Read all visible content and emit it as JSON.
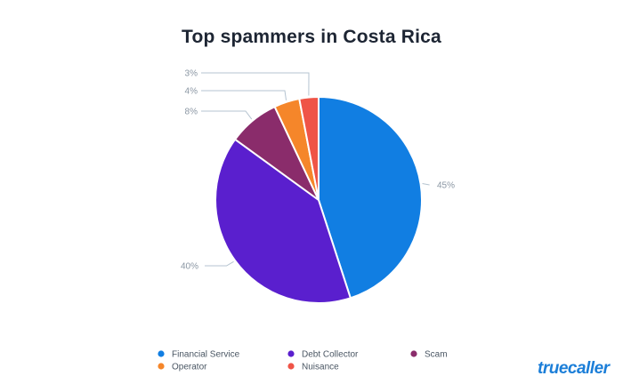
{
  "chart_data": {
    "type": "pie",
    "title": "Top spammers in Costa Rica",
    "slices": [
      {
        "name": "Financial Service",
        "value": 45,
        "label": "45%",
        "color": "#117ee2"
      },
      {
        "name": "Debt Collector",
        "value": 40,
        "label": "40%",
        "color": "#5a1fce"
      },
      {
        "name": "Scam",
        "value": 8,
        "label": "8%",
        "color": "#8a2c6b"
      },
      {
        "name": "Operator",
        "value": 4,
        "label": "4%",
        "color": "#f5862a"
      },
      {
        "name": "Nuisance",
        "value": 3,
        "label": "3%",
        "color": "#ef5447"
      }
    ],
    "legend": {
      "placement": "bottom",
      "items": [
        "Financial Service",
        "Debt Collector",
        "Scam",
        "Operator",
        "Nuisance"
      ]
    }
  },
  "brand": {
    "name": "truecaller",
    "color": "#1b7ed8"
  }
}
